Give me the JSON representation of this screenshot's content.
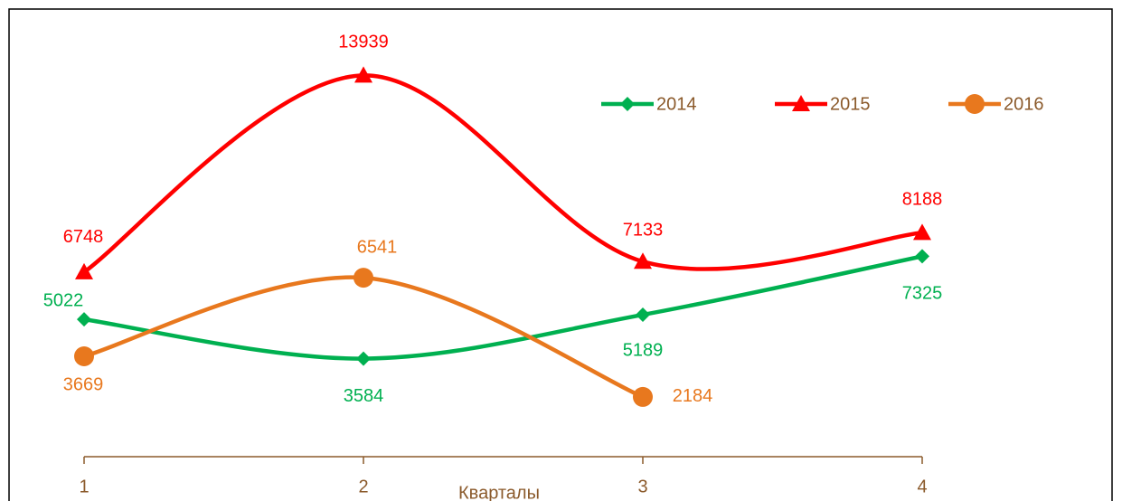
{
  "chart_data": {
    "type": "line",
    "x_label": "Кварталы",
    "categories": [
      "1",
      "2",
      "3",
      "4"
    ],
    "series": [
      {
        "name": "2014",
        "color": "#00b050",
        "marker": "diamond",
        "values": [
          5022,
          3584,
          5189,
          7325
        ]
      },
      {
        "name": "2015",
        "color": "#ff0000",
        "marker": "triangle",
        "values": [
          6748,
          13939,
          7133,
          8188
        ]
      },
      {
        "name": "2016",
        "color": "#e8781e",
        "marker": "circle",
        "values": [
          3669,
          6541,
          2184,
          null
        ]
      }
    ],
    "ylim": [
      0,
      16000
    ],
    "smooth": true,
    "legend": "top-right",
    "axis_color": "#8b5a2b"
  }
}
